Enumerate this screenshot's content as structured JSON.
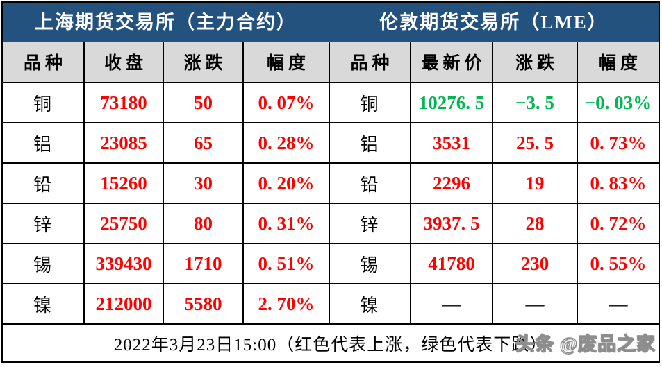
{
  "colors": {
    "title_bar_bg": "#24527F",
    "title_text": "#FFFFFF",
    "header_row_bg": "#D9D9D9",
    "up_red": "#FF0000",
    "down_green": "#00B852",
    "neutral_black": "#000000"
  },
  "titles": {
    "shfe": "上海期货交易所（主力合约）",
    "lme": "伦敦期货交易所（LME）"
  },
  "columns": {
    "shfe": [
      "品种",
      "收盘",
      "涨跌",
      "幅度"
    ],
    "lme": [
      "品种",
      "最新价",
      "涨跌",
      "幅度"
    ]
  },
  "rows": [
    {
      "shfe": {
        "name": "铜",
        "close": "73180",
        "chg": "50",
        "pct": "0. 07%",
        "trend": "up"
      },
      "lme": {
        "name": "铜",
        "last": "10276. 5",
        "chg": "−3. 5",
        "pct": "−0. 03%",
        "trend": "down"
      }
    },
    {
      "shfe": {
        "name": "铝",
        "close": "23085",
        "chg": "65",
        "pct": "0. 28%",
        "trend": "up"
      },
      "lme": {
        "name": "铝",
        "last": "3531",
        "chg": "25. 5",
        "pct": "0. 73%",
        "trend": "up"
      }
    },
    {
      "shfe": {
        "name": "铅",
        "close": "15260",
        "chg": "30",
        "pct": "0. 20%",
        "trend": "up"
      },
      "lme": {
        "name": "铅",
        "last": "2296",
        "chg": "19",
        "pct": "0. 83%",
        "trend": "up"
      }
    },
    {
      "shfe": {
        "name": "锌",
        "close": "25750",
        "chg": "80",
        "pct": "0. 31%",
        "trend": "up"
      },
      "lme": {
        "name": "锌",
        "last": "3937. 5",
        "chg": "28",
        "pct": "0. 72%",
        "trend": "up"
      }
    },
    {
      "shfe": {
        "name": "锡",
        "close": "339430",
        "chg": "1710",
        "pct": "0. 51%",
        "trend": "up"
      },
      "lme": {
        "name": "锡",
        "last": "41780",
        "chg": "230",
        "pct": "0. 55%",
        "trend": "up"
      }
    },
    {
      "shfe": {
        "name": "镍",
        "close": "212000",
        "chg": "5580",
        "pct": "2. 70%",
        "trend": "up"
      },
      "lme": {
        "name": "镍",
        "last": "—",
        "chg": "—",
        "pct": "—",
        "trend": "none"
      }
    }
  ],
  "footer": {
    "note": "2022年3月23日15:00（红色代表上涨，绿色代表下跌）",
    "watermark": "头条 @废品之家"
  },
  "chart_data": [
    {
      "type": "table",
      "title": "上海期货交易所（主力合约）",
      "columns": [
        "品种",
        "收盘",
        "涨跌",
        "幅度"
      ],
      "rows": [
        [
          "铜",
          73180,
          50,
          "0.07%"
        ],
        [
          "铝",
          23085,
          65,
          "0.28%"
        ],
        [
          "铅",
          15260,
          30,
          "0.20%"
        ],
        [
          "锌",
          25750,
          80,
          "0.31%"
        ],
        [
          "锡",
          339430,
          1710,
          "0.51%"
        ],
        [
          "镍",
          212000,
          5580,
          "2.70%"
        ]
      ]
    },
    {
      "type": "table",
      "title": "伦敦期货交易所（LME）",
      "columns": [
        "品种",
        "最新价",
        "涨跌",
        "幅度"
      ],
      "rows": [
        [
          "铜",
          10276.5,
          -3.5,
          "-0.03%"
        ],
        [
          "铝",
          3531,
          25.5,
          "0.73%"
        ],
        [
          "铅",
          2296,
          19,
          "0.83%"
        ],
        [
          "锌",
          3937.5,
          28,
          "0.72%"
        ],
        [
          "锡",
          41780,
          230,
          "0.55%"
        ],
        [
          "镍",
          null,
          null,
          null
        ]
      ]
    }
  ]
}
